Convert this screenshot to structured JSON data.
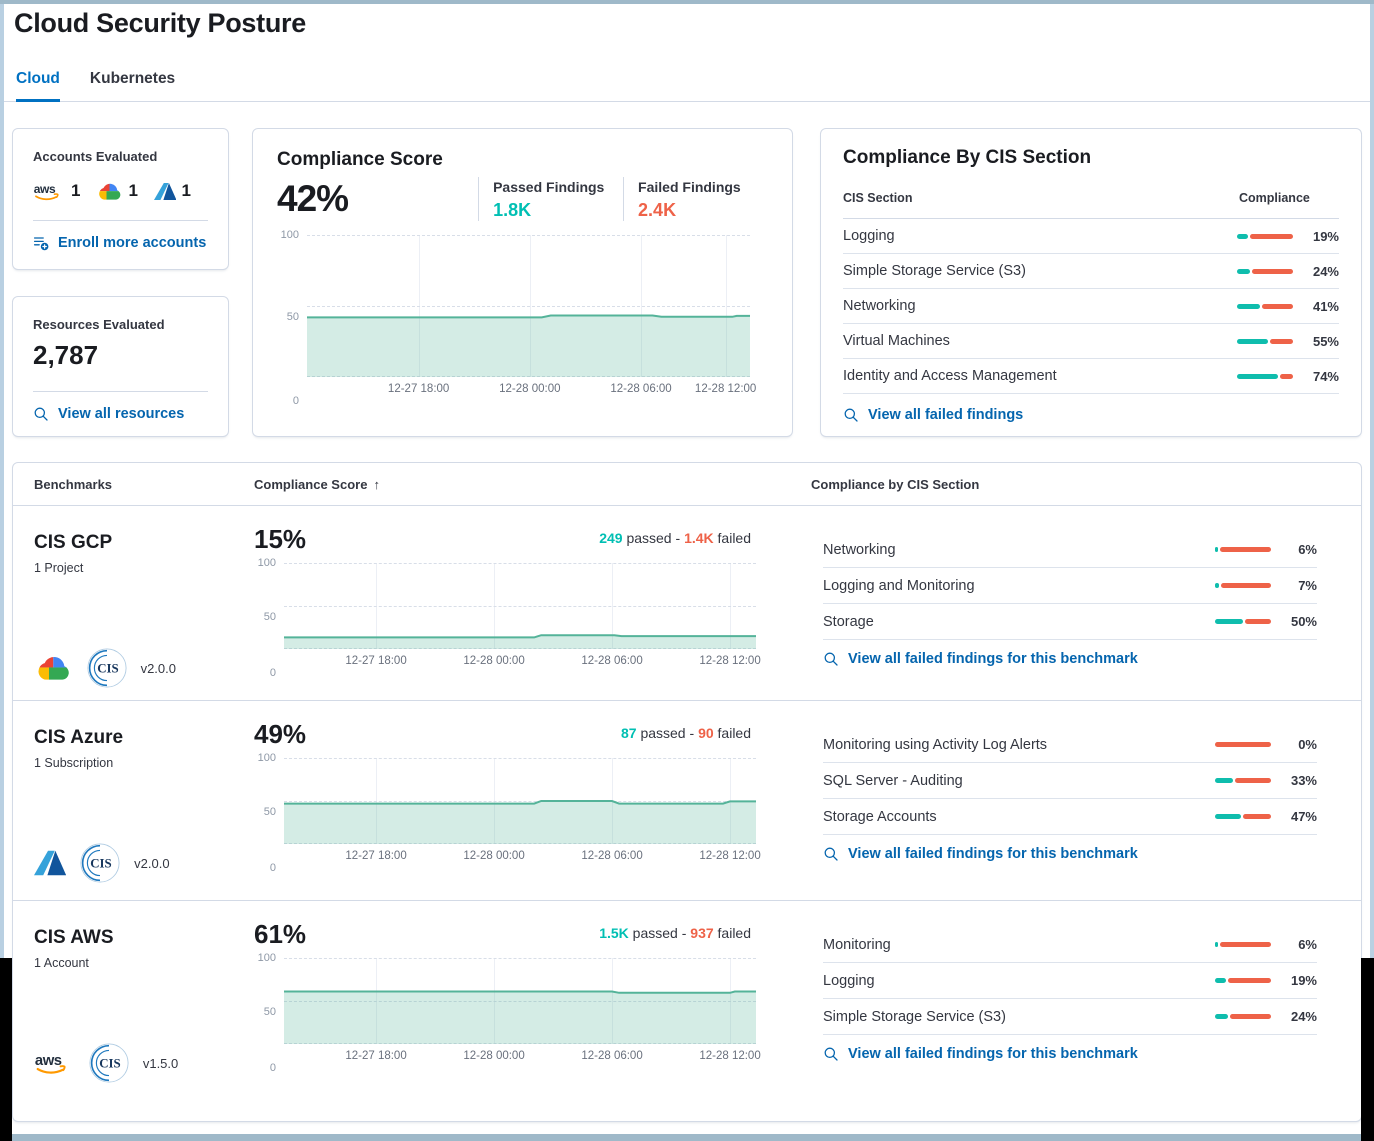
{
  "colors": {
    "passed": "#00BFB3",
    "failed": "#EE6248",
    "link": "#0565AE",
    "active_tab": "#0071C2",
    "trend_line": "#54B399"
  },
  "header": {
    "title": "Cloud Security Posture",
    "tabs": [
      {
        "label": "Cloud",
        "active": true
      },
      {
        "label": "Kubernetes",
        "active": false
      }
    ]
  },
  "accounts": {
    "title": "Accounts Evaluated",
    "providers": [
      {
        "icon": "aws",
        "count": "1"
      },
      {
        "icon": "gcp",
        "count": "1"
      },
      {
        "icon": "azure",
        "count": "1"
      }
    ],
    "enroll_link": "Enroll more accounts"
  },
  "resources": {
    "title": "Resources Evaluated",
    "count": "2,787",
    "view_link": "View all resources"
  },
  "compliance_score": {
    "title": "Compliance Score",
    "score": "42%",
    "passed_label": "Passed Findings",
    "passed_value": "1.8K",
    "failed_label": "Failed Findings",
    "failed_value": "2.4K",
    "trend": [
      [
        0,
        42
      ],
      [
        0.53,
        42
      ],
      [
        0.55,
        43.3
      ],
      [
        0.78,
        43.3
      ],
      [
        0.8,
        42.4
      ],
      [
        0.96,
        42.4
      ],
      [
        0.97,
        43
      ],
      [
        1,
        43
      ]
    ]
  },
  "axis": {
    "y_ticks": [
      "100",
      "50",
      "0"
    ],
    "x_ticks": [
      "12-27 18:00",
      "12-28 00:00",
      "12-28 06:00",
      "12-28 12:00"
    ]
  },
  "cis_overview": {
    "title": "Compliance By CIS Section",
    "section_col": "CIS Section",
    "compliance_col": "Compliance",
    "rows": [
      {
        "label": "Logging",
        "pct": 19,
        "display": "19%"
      },
      {
        "label": "Simple Storage Service (S3)",
        "pct": 24,
        "display": "24%"
      },
      {
        "label": "Networking",
        "pct": 41,
        "display": "41%"
      },
      {
        "label": "Virtual Machines",
        "pct": 55,
        "display": "55%"
      },
      {
        "label": "Identity and Access Management",
        "pct": 74,
        "display": "74%"
      }
    ],
    "link": "View all failed findings"
  },
  "benchmarks": {
    "col_benchmarks": "Benchmarks",
    "col_score": "Compliance Score",
    "sort_arrow": "↑",
    "col_sections": "Compliance by CIS Section",
    "passed_word": "passed",
    "failed_word": "failed",
    "separator": "-",
    "link_benchmark": "View all failed findings for this benchmark",
    "rows": [
      {
        "name": "CIS GCP",
        "scope": "1 Project",
        "provider": "gcp",
        "cis_version": "v2.0.0",
        "score": "15%",
        "passed": "249",
        "failed": "1.4K",
        "trend": [
          [
            0,
            13.5
          ],
          [
            0.53,
            13.5
          ],
          [
            0.545,
            16
          ],
          [
            0.7,
            16
          ],
          [
            0.715,
            15
          ],
          [
            1,
            15
          ]
        ],
        "sections": [
          {
            "label": "Networking",
            "pct": 6,
            "display": "6%"
          },
          {
            "label": "Logging and Monitoring",
            "pct": 7,
            "display": "7%"
          },
          {
            "label": "Storage",
            "pct": 50,
            "display": "50%"
          }
        ]
      },
      {
        "name": "CIS Azure",
        "scope": "1 Subscription",
        "provider": "azure",
        "cis_version": "v2.0.0",
        "score": "49%",
        "passed": "87",
        "failed": "90",
        "trend": [
          [
            0,
            47
          ],
          [
            0.53,
            47
          ],
          [
            0.545,
            50
          ],
          [
            0.695,
            50
          ],
          [
            0.71,
            47
          ],
          [
            0.93,
            47
          ],
          [
            0.945,
            49.5
          ],
          [
            1,
            49.5
          ]
        ],
        "sections": [
          {
            "label": "Monitoring using Activity Log Alerts",
            "pct": 0,
            "display": "0%"
          },
          {
            "label": "SQL Server - Auditing",
            "pct": 33,
            "display": "33%"
          },
          {
            "label": "Storage Accounts",
            "pct": 47,
            "display": "47%"
          }
        ]
      },
      {
        "name": "CIS AWS",
        "scope": "1 Account",
        "provider": "aws",
        "cis_version": "v1.5.0",
        "score": "61%",
        "passed": "1.5K",
        "failed": "937",
        "trend": [
          [
            0,
            61
          ],
          [
            0.695,
            61
          ],
          [
            0.71,
            59.5
          ],
          [
            0.945,
            59.5
          ],
          [
            0.955,
            61
          ],
          [
            1,
            61
          ]
        ],
        "sections": [
          {
            "label": "Monitoring",
            "pct": 6,
            "display": "6%"
          },
          {
            "label": "Logging",
            "pct": 19,
            "display": "19%"
          },
          {
            "label": "Simple Storage Service (S3)",
            "pct": 24,
            "display": "24%"
          }
        ]
      }
    ]
  }
}
